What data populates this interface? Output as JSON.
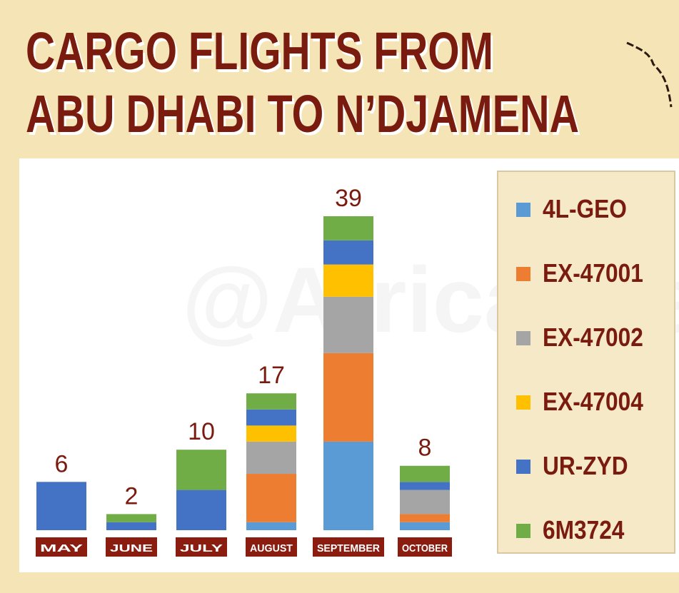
{
  "chart_data": {
    "type": "stacked-bar",
    "title": [
      "CARGO FLIGHTS FROM",
      "ABU DHABI TO N’DJAMENA"
    ],
    "watermark": "@Africaintel",
    "categories": [
      "MAY",
      "JUNE",
      "JULY",
      "AUGUST",
      "SEPTEMBER",
      "OCTOBER"
    ],
    "totals": [
      6,
      2,
      10,
      17,
      39,
      8
    ],
    "series": [
      {
        "name": "4L-GEO",
        "color": "#5b9bd5",
        "values": [
          0,
          0,
          0,
          1,
          11,
          1
        ]
      },
      {
        "name": "EX-47001",
        "color": "#ed7d31",
        "values": [
          0,
          0,
          0,
          6,
          11,
          1
        ]
      },
      {
        "name": "EX-47002",
        "color": "#a5a5a5",
        "values": [
          0,
          0,
          0,
          4,
          7,
          3
        ]
      },
      {
        "name": "EX-47004",
        "color": "#ffc000",
        "values": [
          0,
          0,
          0,
          2,
          4,
          0
        ]
      },
      {
        "name": "UR-ZYD",
        "color": "#4472c4",
        "values": [
          6,
          1,
          5,
          2,
          3,
          1
        ]
      },
      {
        "name": "6M3724",
        "color": "#70ad47",
        "values": [
          0,
          1,
          5,
          2,
          3,
          2
        ]
      }
    ]
  }
}
